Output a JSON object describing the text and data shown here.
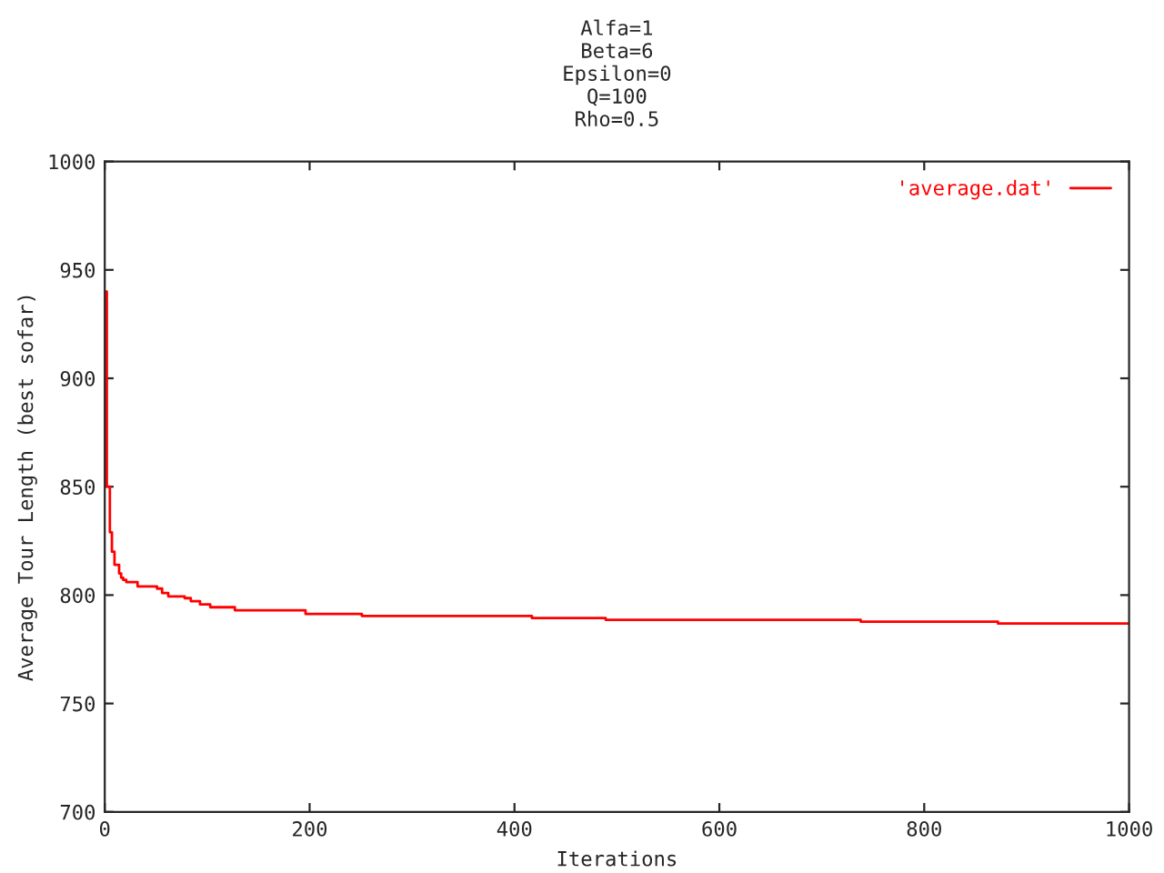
{
  "chart_data": {
    "type": "step",
    "title": "Alfa=1\nBeta=6\nEpsilon=0\nQ=100\nRho=0.5",
    "xlabel": "Iterations",
    "ylabel": "Average Tour Length (best sofar)",
    "series": [
      {
        "name": "'average.dat'",
        "color": "#ff0000",
        "x": [
          0,
          2,
          5,
          7,
          9.5,
          14,
          16,
          18,
          21,
          32,
          51,
          56,
          62,
          78,
          84,
          93,
          103,
          127,
          196,
          251,
          417,
          489,
          738,
          872,
          1000
        ],
        "values": [
          940,
          850,
          829,
          820,
          814,
          810,
          808,
          807,
          806,
          804,
          803,
          801,
          799.4,
          798.6,
          797.2,
          795.7,
          794.4,
          793,
          791.3,
          790.4,
          789.4,
          788.6,
          787.7,
          786.9,
          786.9
        ]
      }
    ],
    "xlim": [
      0,
      1000
    ],
    "ylim": [
      700,
      1000
    ],
    "xticks": [
      0,
      200,
      400,
      600,
      800,
      1000
    ],
    "yticks": [
      700,
      750,
      800,
      850,
      900,
      950,
      1000
    ],
    "grid": false,
    "legend": "top right"
  }
}
